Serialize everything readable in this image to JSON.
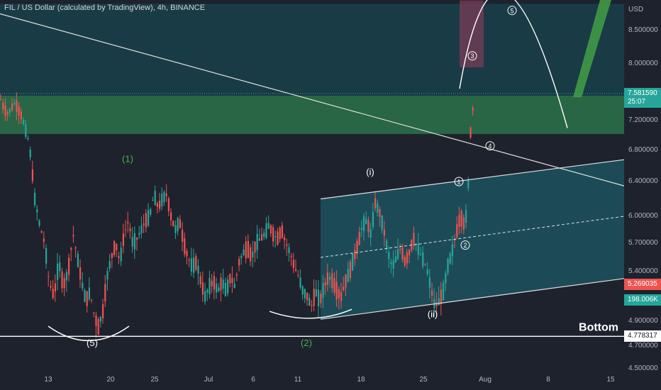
{
  "header": {
    "title": "FIL / US Dollar (calculated by TradingView), 4h, BINANCE"
  },
  "colors": {
    "background": "#1e222d",
    "up": "#26a69a",
    "down": "#ef5350",
    "zone": "#2e7d4f",
    "channel": "#1c5a66",
    "price_badge": "#26a69a",
    "prev_badge": "#ef5350",
    "volume_badge": "#26a69a"
  },
  "chart_data": {
    "type": "candlestick",
    "currency_label": "USD",
    "y_ticks": [
      "8.500000",
      "8.000000",
      "7.600000",
      "7.200000",
      "6.800000",
      "6.400000",
      "6.000000",
      "5.700000",
      "5.400000",
      "4.900000",
      "4.700000",
      "4.500000"
    ],
    "y_tick_values": [
      8.5,
      8.0,
      7.6,
      7.2,
      6.8,
      6.4,
      6.0,
      5.7,
      5.4,
      4.9,
      4.7,
      4.5
    ],
    "x_ticks": [
      "13",
      "20",
      "25",
      "Jul",
      "6",
      "11",
      "18",
      "25",
      "Aug",
      "8",
      "15"
    ],
    "last_price": "7.581590",
    "countdown": "25:07",
    "marker_price": "5.269035",
    "volume": "198.006K",
    "bottom_price": "4.778317",
    "price_path": [
      [
        0,
        7.5
      ],
      [
        5,
        7.35
      ],
      [
        10,
        7.3
      ],
      [
        20,
        7.45
      ],
      [
        30,
        7.25
      ],
      [
        40,
        6.9
      ],
      [
        48,
        6.2
      ],
      [
        55,
        5.9
      ],
      [
        62,
        5.7
      ],
      [
        68,
        5.3
      ],
      [
        75,
        5.15
      ],
      [
        82,
        5.5
      ],
      [
        88,
        5.25
      ],
      [
        95,
        5.4
      ],
      [
        102,
        5.8
      ],
      [
        108,
        5.55
      ],
      [
        114,
        5.3
      ],
      [
        120,
        5.1
      ],
      [
        126,
        5.2
      ],
      [
        132,
        4.95
      ],
      [
        138,
        4.85
      ],
      [
        144,
        5.0
      ],
      [
        150,
        5.35
      ],
      [
        156,
        5.55
      ],
      [
        162,
        5.7
      ],
      [
        168,
        5.5
      ],
      [
        174,
        5.8
      ],
      [
        180,
        5.95
      ],
      [
        186,
        5.7
      ],
      [
        192,
        5.75
      ],
      [
        198,
        5.85
      ],
      [
        204,
        5.95
      ],
      [
        210,
        6.0
      ],
      [
        216,
        6.25
      ],
      [
        222,
        6.1
      ],
      [
        228,
        6.2
      ],
      [
        234,
        6.25
      ],
      [
        240,
        6.0
      ],
      [
        246,
        5.85
      ],
      [
        252,
        5.95
      ],
      [
        258,
        5.7
      ],
      [
        264,
        5.55
      ],
      [
        270,
        5.45
      ],
      [
        276,
        5.5
      ],
      [
        282,
        5.3
      ],
      [
        288,
        5.15
      ],
      [
        294,
        5.25
      ],
      [
        300,
        5.3
      ],
      [
        306,
        5.2
      ],
      [
        312,
        5.3
      ],
      [
        318,
        5.2
      ],
      [
        324,
        5.35
      ],
      [
        330,
        5.25
      ],
      [
        336,
        5.5
      ],
      [
        342,
        5.6
      ],
      [
        348,
        5.65
      ],
      [
        354,
        5.55
      ],
      [
        360,
        5.7
      ],
      [
        366,
        5.75
      ],
      [
        372,
        5.8
      ],
      [
        378,
        5.9
      ],
      [
        384,
        5.8
      ],
      [
        390,
        5.75
      ],
      [
        396,
        5.85
      ],
      [
        402,
        5.7
      ],
      [
        408,
        5.6
      ],
      [
        414,
        5.45
      ],
      [
        420,
        5.35
      ],
      [
        426,
        5.2
      ],
      [
        432,
        5.15
      ],
      [
        438,
        5.05
      ],
      [
        444,
        5.2
      ],
      [
        450,
        5.1
      ],
      [
        456,
        5.25
      ],
      [
        462,
        5.35
      ],
      [
        468,
        5.3
      ],
      [
        474,
        5.2
      ],
      [
        480,
        5.15
      ],
      [
        486,
        5.3
      ],
      [
        492,
        5.4
      ],
      [
        498,
        5.55
      ],
      [
        504,
        5.7
      ],
      [
        510,
        5.9
      ],
      [
        516,
        5.95
      ],
      [
        522,
        5.8
      ],
      [
        528,
        6.15
      ],
      [
        534,
        6.05
      ],
      [
        540,
        5.85
      ],
      [
        546,
        5.6
      ],
      [
        552,
        5.45
      ],
      [
        558,
        5.55
      ],
      [
        564,
        5.65
      ],
      [
        570,
        5.5
      ],
      [
        576,
        5.6
      ],
      [
        582,
        5.75
      ],
      [
        588,
        5.65
      ],
      [
        594,
        5.55
      ],
      [
        600,
        5.45
      ],
      [
        606,
        5.25
      ],
      [
        612,
        5.05
      ],
      [
        618,
        5.1
      ],
      [
        624,
        5.2
      ],
      [
        630,
        5.45
      ],
      [
        636,
        5.6
      ],
      [
        642,
        5.8
      ],
      [
        648,
        6.0
      ],
      [
        654,
        5.9
      ],
      [
        658,
        6.1
      ],
      [
        662,
        7.0
      ],
      [
        666,
        7.4
      ],
      [
        668,
        7.58
      ]
    ],
    "resistance_zone": [
      7.02,
      7.55
    ],
    "descending_trendline": [
      [
        0,
        8.75
      ],
      [
        880,
        6.35
      ]
    ],
    "channel_upper": [
      [
        452,
        6.2
      ],
      [
        880,
        6.68
      ]
    ],
    "channel_mid": [
      [
        452,
        5.55
      ],
      [
        880,
        6.0
      ]
    ],
    "channel_lower": [
      [
        452,
        4.92
      ],
      [
        880,
        5.33
      ]
    ],
    "target_box": [
      7.95,
      8.95
    ],
    "wave_labels": [
      {
        "text": "(1)",
        "x": 180,
        "price": 6.65,
        "color": "#4caf50"
      },
      {
        "text": "(2)",
        "x": 432,
        "price": 4.7,
        "color": "#4caf50"
      },
      {
        "text": "(5)",
        "x": 130,
        "price": 4.7,
        "color": "#ffffff"
      },
      {
        "text": "(i)",
        "x": 522,
        "price": 6.48,
        "color": "#ffffff"
      },
      {
        "text": "(ii)",
        "x": 610,
        "price": 4.94,
        "color": "#ffffff"
      }
    ],
    "circled_labels": [
      {
        "text": "1",
        "x": 647,
        "price": 6.4
      },
      {
        "text": "2",
        "x": 656,
        "price": 5.68
      },
      {
        "text": "3",
        "x": 666,
        "price": 8.12
      },
      {
        "text": "4",
        "x": 691,
        "price": 6.86
      },
      {
        "text": "5",
        "x": 722,
        "price": 8.8
      }
    ],
    "bottom_label": "Bottom"
  }
}
